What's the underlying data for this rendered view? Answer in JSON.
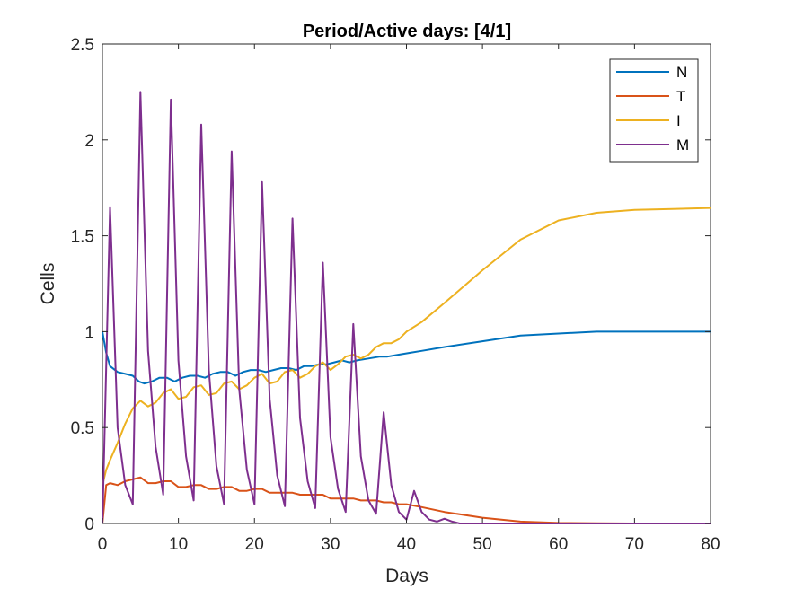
{
  "chart_data": {
    "type": "line",
    "title": "Period/Active days: [4/1]",
    "xlabel": "Days",
    "ylabel": "Cells",
    "xlim": [
      0,
      80
    ],
    "ylim": [
      0,
      2.5
    ],
    "xticks": [
      0,
      10,
      20,
      30,
      40,
      50,
      60,
      70,
      80
    ],
    "yticks": [
      0,
      0.5,
      1,
      1.5,
      2,
      2.5
    ],
    "xtick_labels": [
      "0",
      "10",
      "20",
      "30",
      "40",
      "50",
      "60",
      "70",
      "80"
    ],
    "ytick_labels": [
      "0",
      "0.5",
      "1",
      "1.5",
      "2",
      "2.5"
    ],
    "grid": false,
    "legend_position": "top-right",
    "series": [
      {
        "name": "N",
        "color": "#0072BD",
        "x": [
          0,
          0.5,
          1,
          2,
          3,
          4,
          4.8,
          5.5,
          6.5,
          7.5,
          8.5,
          9.5,
          10.5,
          11.5,
          12.5,
          13.5,
          14.5,
          15.5,
          16.5,
          17.5,
          18.5,
          19.5,
          20.5,
          21.5,
          22.5,
          23.5,
          24.5,
          25.5,
          26.5,
          27.5,
          28.5,
          29.5,
          30.5,
          31.5,
          32.5,
          33.5,
          35,
          36.5,
          37.5,
          39,
          40.5,
          42,
          45,
          50,
          55,
          60,
          65,
          70,
          75,
          80
        ],
        "y": [
          1.0,
          0.89,
          0.82,
          0.79,
          0.78,
          0.77,
          0.74,
          0.73,
          0.74,
          0.76,
          0.76,
          0.74,
          0.76,
          0.77,
          0.77,
          0.76,
          0.78,
          0.79,
          0.79,
          0.77,
          0.79,
          0.8,
          0.8,
          0.79,
          0.8,
          0.81,
          0.81,
          0.8,
          0.82,
          0.82,
          0.83,
          0.83,
          0.84,
          0.85,
          0.84,
          0.85,
          0.86,
          0.87,
          0.87,
          0.88,
          0.89,
          0.9,
          0.92,
          0.95,
          0.98,
          0.99,
          1.0,
          1.0,
          1.0,
          1.0
        ]
      },
      {
        "name": "T",
        "color": "#D95319",
        "x": [
          0,
          0.5,
          1,
          2,
          3,
          4,
          5,
          6,
          7,
          8,
          9,
          10,
          11,
          12,
          13,
          14,
          15,
          16,
          17,
          18,
          19,
          20,
          21,
          22,
          23,
          24,
          25,
          26,
          27,
          28,
          29,
          30,
          31,
          32,
          33,
          34,
          35,
          36,
          37,
          38,
          39,
          40,
          42,
          45,
          50,
          55,
          60,
          65,
          70,
          80
        ],
        "y": [
          0.0,
          0.2,
          0.21,
          0.2,
          0.22,
          0.23,
          0.24,
          0.21,
          0.21,
          0.22,
          0.22,
          0.19,
          0.19,
          0.2,
          0.2,
          0.18,
          0.18,
          0.19,
          0.19,
          0.17,
          0.17,
          0.18,
          0.18,
          0.16,
          0.16,
          0.16,
          0.16,
          0.15,
          0.15,
          0.15,
          0.15,
          0.13,
          0.13,
          0.13,
          0.13,
          0.12,
          0.12,
          0.12,
          0.11,
          0.11,
          0.1,
          0.1,
          0.085,
          0.06,
          0.03,
          0.01,
          0.003,
          0.001,
          0.0,
          0.0
        ]
      },
      {
        "name": "I",
        "color": "#EDB120",
        "x": [
          0,
          0.5,
          1,
          2,
          3,
          4,
          5,
          6,
          7,
          8,
          9,
          10,
          11,
          12,
          13,
          14,
          15,
          16,
          17,
          18,
          19,
          20,
          21,
          22,
          23,
          24,
          25,
          26,
          27,
          28,
          29,
          30,
          31,
          32,
          33,
          34,
          35,
          36,
          37,
          38,
          39,
          40,
          42,
          45,
          50,
          55,
          60,
          65,
          70,
          75,
          80
        ],
        "y": [
          0.2,
          0.28,
          0.33,
          0.42,
          0.52,
          0.6,
          0.64,
          0.61,
          0.63,
          0.68,
          0.7,
          0.65,
          0.66,
          0.71,
          0.72,
          0.67,
          0.68,
          0.73,
          0.74,
          0.7,
          0.72,
          0.76,
          0.78,
          0.73,
          0.74,
          0.79,
          0.8,
          0.76,
          0.78,
          0.82,
          0.84,
          0.8,
          0.83,
          0.87,
          0.88,
          0.86,
          0.88,
          0.92,
          0.94,
          0.94,
          0.96,
          1.0,
          1.05,
          1.15,
          1.32,
          1.48,
          1.58,
          1.62,
          1.635,
          1.64,
          1.645
        ]
      },
      {
        "name": "M",
        "color": "#7E2F8E",
        "x": [
          0,
          1,
          2,
          3,
          4,
          5,
          6,
          7,
          8,
          9,
          10,
          11,
          12,
          13,
          14,
          15,
          16,
          17,
          18,
          19,
          20,
          21,
          22,
          23,
          24,
          25,
          26,
          27,
          28,
          29,
          30,
          31,
          32,
          33,
          34,
          35,
          36,
          37,
          38,
          39,
          40,
          41,
          42,
          43,
          44,
          45,
          46,
          47,
          50,
          80
        ],
        "y": [
          0.0,
          1.65,
          0.5,
          0.2,
          0.1,
          2.25,
          0.9,
          0.4,
          0.15,
          2.21,
          0.85,
          0.35,
          0.12,
          2.08,
          0.8,
          0.3,
          0.1,
          1.94,
          0.7,
          0.28,
          0.1,
          1.78,
          0.65,
          0.25,
          0.09,
          1.59,
          0.55,
          0.22,
          0.08,
          1.36,
          0.45,
          0.18,
          0.06,
          1.04,
          0.35,
          0.12,
          0.05,
          0.58,
          0.2,
          0.06,
          0.02,
          0.17,
          0.06,
          0.02,
          0.01,
          0.025,
          0.01,
          0.0,
          0.0,
          0.0
        ]
      }
    ]
  }
}
